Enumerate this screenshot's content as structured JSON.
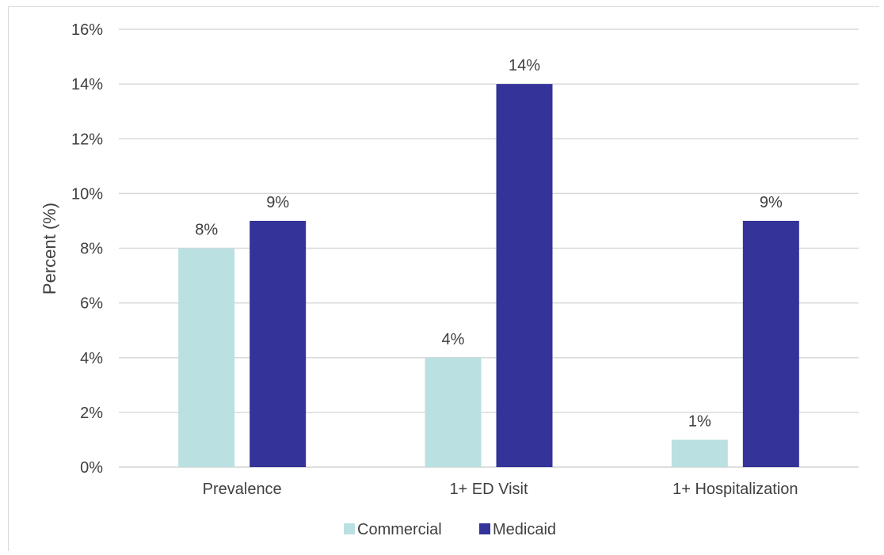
{
  "chart_data": {
    "type": "bar",
    "title": "",
    "xlabel": "",
    "ylabel": "Percent (%)",
    "categories": [
      "Prevalence",
      "1+ ED Visit",
      "1+ Hospitalization"
    ],
    "series": [
      {
        "name": "Commercial",
        "values": [
          8,
          4,
          1
        ],
        "labels": [
          "8%",
          "4%",
          "1%"
        ],
        "color": "#bbe0e2"
      },
      {
        "name": "Medicaid",
        "values": [
          9,
          14,
          9
        ],
        "labels": [
          "9%",
          "14%",
          "9%"
        ],
        "color": "#333399"
      }
    ],
    "ylim": [
      0,
      16
    ],
    "yticks": [
      0,
      2,
      4,
      6,
      8,
      10,
      12,
      14,
      16
    ],
    "ytick_labels": [
      "0%",
      "2%",
      "4%",
      "6%",
      "8%",
      "10%",
      "12%",
      "14%",
      "16%"
    ],
    "grid": true,
    "legend_position": "bottom",
    "gridline_color": "#d9d9d9"
  }
}
